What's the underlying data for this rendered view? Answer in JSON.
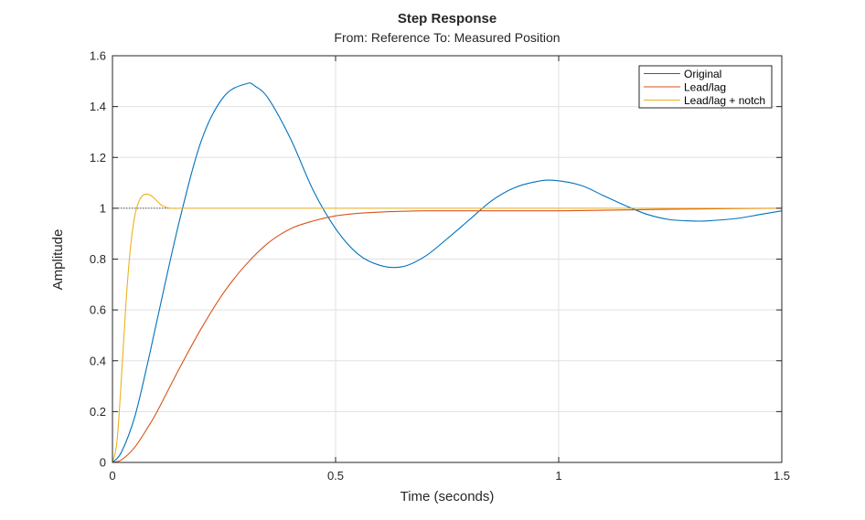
{
  "chart_data": {
    "type": "line",
    "title": "Step Response",
    "subtitle": "From: Reference  To: Measured Position",
    "xlabel": "Time (seconds)",
    "ylabel": "Amplitude",
    "xlim": [
      0,
      1.5
    ],
    "ylim": [
      0,
      1.6
    ],
    "xticks": [
      0,
      0.5,
      1,
      1.5
    ],
    "xtick_labels": [
      "0",
      "0.5",
      "1",
      "1.5"
    ],
    "yticks": [
      0,
      0.2,
      0.4,
      0.6,
      0.8,
      1,
      1.2,
      1.4,
      1.6
    ],
    "ytick_labels": [
      "0",
      "0.2",
      "0.4",
      "0.6",
      "0.8",
      "1",
      "1.2",
      "1.4",
      "1.6"
    ],
    "grid": true,
    "legend_position": "top-right",
    "reference_line": {
      "y": 1,
      "style": "dotted",
      "x_range": [
        0,
        0.13
      ]
    },
    "series": [
      {
        "name": "Original",
        "color": "#0072BD",
        "x": [
          0,
          0.02,
          0.05,
          0.08,
          0.1,
          0.15,
          0.2,
          0.25,
          0.3,
          0.32,
          0.35,
          0.4,
          0.45,
          0.5,
          0.55,
          0.6,
          0.65,
          0.7,
          0.75,
          0.8,
          0.85,
          0.9,
          0.95,
          0.99,
          1.05,
          1.1,
          1.15,
          1.2,
          1.25,
          1.3,
          1.33,
          1.4,
          1.45,
          1.5
        ],
        "y": [
          0,
          0.04,
          0.18,
          0.4,
          0.56,
          0.95,
          1.27,
          1.44,
          1.49,
          1.48,
          1.43,
          1.27,
          1.07,
          0.92,
          0.82,
          0.775,
          0.77,
          0.81,
          0.88,
          0.955,
          1.03,
          1.08,
          1.105,
          1.11,
          1.09,
          1.05,
          1.01,
          0.975,
          0.955,
          0.95,
          0.95,
          0.96,
          0.975,
          0.99
        ]
      },
      {
        "name": "Lead/lag",
        "color": "#D95319",
        "x": [
          0,
          0.02,
          0.05,
          0.08,
          0.1,
          0.15,
          0.2,
          0.25,
          0.3,
          0.35,
          0.4,
          0.45,
          0.5,
          0.55,
          0.6,
          0.65,
          0.7,
          0.8,
          0.9,
          1.0,
          1.1,
          1.2,
          1.3,
          1.4,
          1.5
        ],
        "y": [
          0,
          0.01,
          0.06,
          0.14,
          0.2,
          0.37,
          0.53,
          0.67,
          0.78,
          0.865,
          0.92,
          0.95,
          0.97,
          0.98,
          0.985,
          0.988,
          0.99,
          0.99,
          0.99,
          0.99,
          0.992,
          0.995,
          0.997,
          0.999,
          1.0
        ]
      },
      {
        "name": "Lead/lag + notch",
        "color": "#EDB120",
        "x": [
          0,
          0.01,
          0.02,
          0.03,
          0.04,
          0.05,
          0.06,
          0.07,
          0.08,
          0.09,
          0.1,
          0.11,
          0.12,
          0.13,
          0.15,
          0.2,
          0.5,
          1.0,
          1.5
        ],
        "y": [
          0,
          0.08,
          0.33,
          0.62,
          0.84,
          0.97,
          1.03,
          1.053,
          1.055,
          1.045,
          1.028,
          1.012,
          1.004,
          1.0,
          1.0,
          1.0,
          1.0,
          1.0,
          1.0
        ]
      }
    ]
  }
}
